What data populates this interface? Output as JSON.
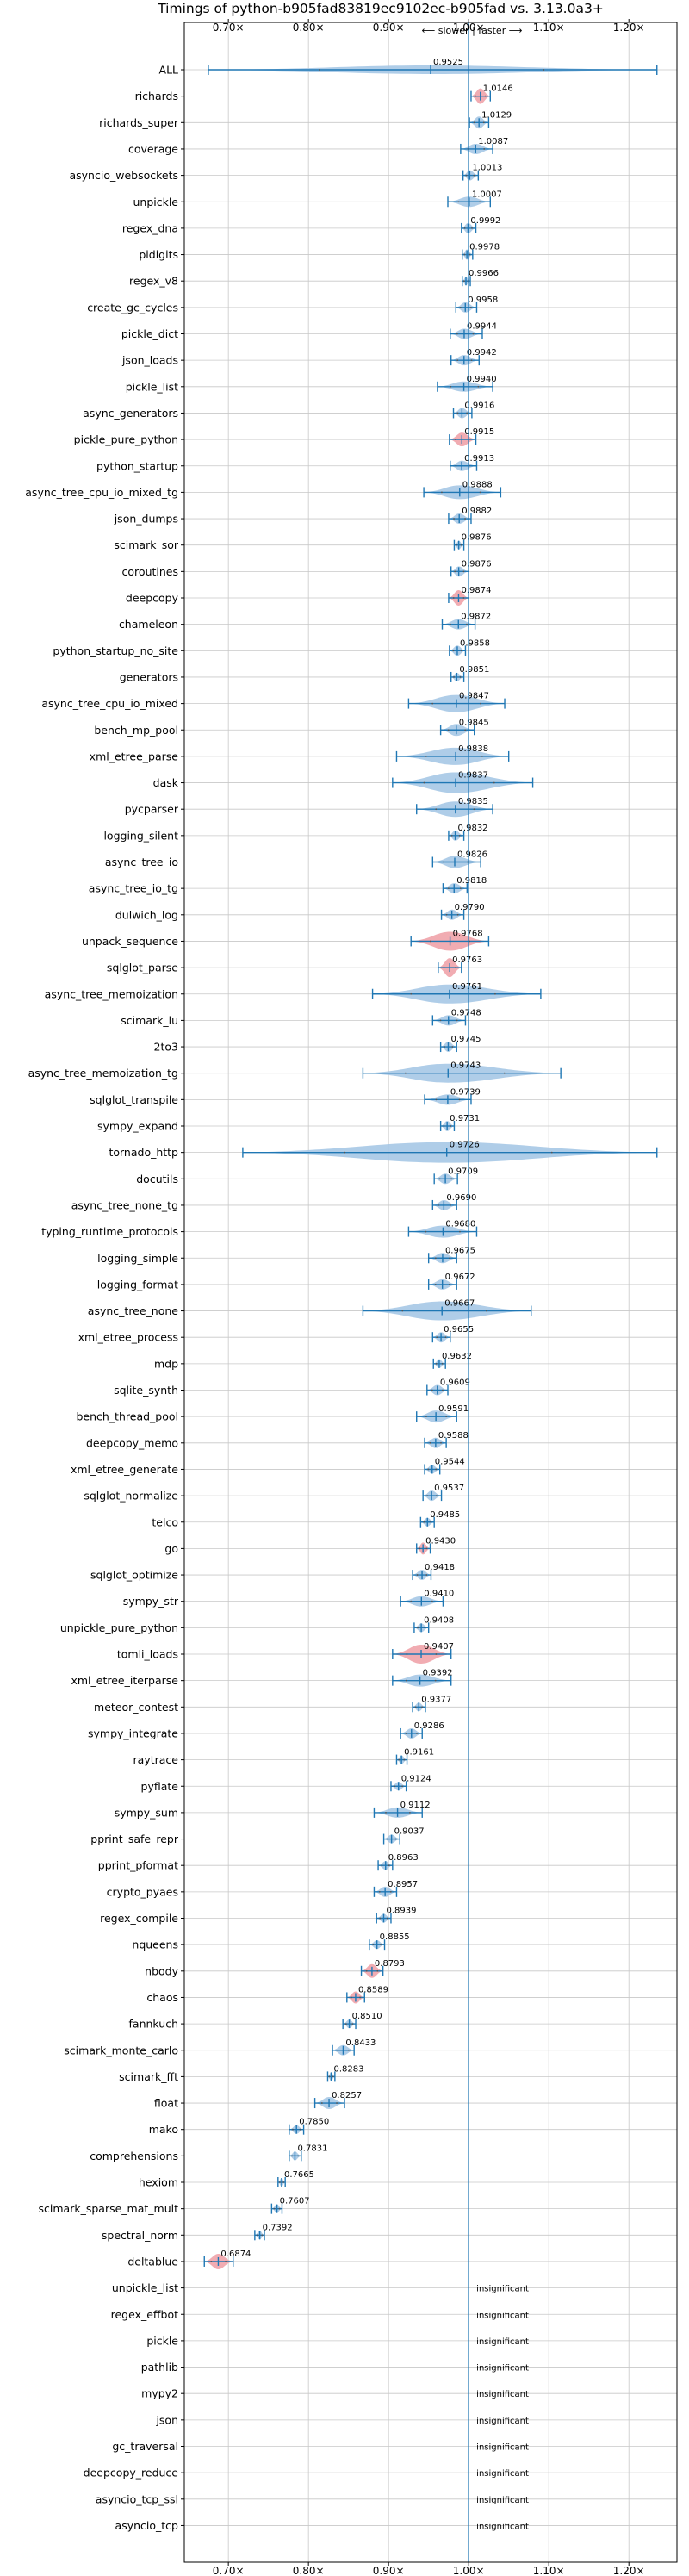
{
  "chart_data": {
    "type": "violin",
    "title": "Timings of python-b905fad83819ec9102ec-b905fad vs. 3.13.0a3+",
    "subtitle": "⟵ slower | faster ⟶",
    "xlim": [
      0.645,
      1.26
    ],
    "reference_line": 1.0,
    "x_ticks": [
      0.7,
      0.8,
      0.9,
      1.0,
      1.1,
      1.2
    ],
    "x_tick_labels": [
      "0.70×",
      "0.80×",
      "0.90×",
      "1.00×",
      "1.10×",
      "1.20×"
    ],
    "grid": true,
    "colors": {
      "normal": "#1f77b4",
      "normal_fill": "#a6c8e6",
      "significant_fill": "#f0a3aa",
      "grid": "#c8c8c8"
    },
    "insignificant_label": "insignificant",
    "benchmarks": [
      {
        "name": "ALL",
        "value": 0.9525,
        "label": "0.9525",
        "lo": 0.675,
        "hi": 1.235,
        "w": 5,
        "sig": false
      },
      {
        "name": "richards",
        "value": 1.0146,
        "label": "1.0146",
        "lo": 1.003,
        "hi": 1.027,
        "w": 9,
        "sig": true
      },
      {
        "name": "richards_super",
        "value": 1.0129,
        "label": "1.0129",
        "lo": 1.001,
        "hi": 1.025,
        "w": 7,
        "sig": false
      },
      {
        "name": "coverage",
        "value": 1.0087,
        "label": "1.0087",
        "lo": 0.99,
        "hi": 1.03,
        "w": 6,
        "sig": false
      },
      {
        "name": "asyncio_websockets",
        "value": 1.0013,
        "label": "1.0013",
        "lo": 0.993,
        "hi": 1.012,
        "w": 6,
        "sig": false
      },
      {
        "name": "unpickle",
        "value": 1.0007,
        "label": "1.0007",
        "lo": 0.974,
        "hi": 1.027,
        "w": 6,
        "sig": false
      },
      {
        "name": "regex_dna",
        "value": 0.9992,
        "label": "0.9992",
        "lo": 0.991,
        "hi": 1.009,
        "w": 6,
        "sig": false
      },
      {
        "name": "pidigits",
        "value": 0.9978,
        "label": "0.9978",
        "lo": 0.992,
        "hi": 1.005,
        "w": 6,
        "sig": false
      },
      {
        "name": "regex_v8",
        "value": 0.9966,
        "label": "0.9966",
        "lo": 0.992,
        "hi": 1.002,
        "w": 5,
        "sig": false
      },
      {
        "name": "create_gc_cycles",
        "value": 0.9958,
        "label": "0.9958",
        "lo": 0.984,
        "hi": 1.01,
        "w": 6,
        "sig": false
      },
      {
        "name": "pickle_dict",
        "value": 0.9944,
        "label": "0.9944",
        "lo": 0.977,
        "hi": 1.017,
        "w": 6,
        "sig": false
      },
      {
        "name": "json_loads",
        "value": 0.9942,
        "label": "0.9942",
        "lo": 0.978,
        "hi": 1.013,
        "w": 6,
        "sig": false
      },
      {
        "name": "pickle_list",
        "value": 0.994,
        "label": "0.9940",
        "lo": 0.961,
        "hi": 1.03,
        "w": 6,
        "sig": false
      },
      {
        "name": "async_generators",
        "value": 0.9916,
        "label": "0.9916",
        "lo": 0.981,
        "hi": 1.004,
        "w": 6,
        "sig": false
      },
      {
        "name": "pickle_pure_python",
        "value": 0.9915,
        "label": "0.9915",
        "lo": 0.976,
        "hi": 1.009,
        "w": 8,
        "sig": true
      },
      {
        "name": "python_startup",
        "value": 0.9913,
        "label": "0.9913",
        "lo": 0.977,
        "hi": 1.01,
        "w": 6,
        "sig": false
      },
      {
        "name": "async_tree_cpu_io_mixed_tg",
        "value": 0.9888,
        "label": "0.9888",
        "lo": 0.944,
        "hi": 1.04,
        "w": 8,
        "sig": false
      },
      {
        "name": "json_dumps",
        "value": 0.9882,
        "label": "0.9882",
        "lo": 0.975,
        "hi": 1.003,
        "w": 6,
        "sig": false
      },
      {
        "name": "scimark_sor",
        "value": 0.9876,
        "label": "0.9876",
        "lo": 0.982,
        "hi": 0.994,
        "w": 5,
        "sig": false
      },
      {
        "name": "coroutines",
        "value": 0.9876,
        "label": "0.9876",
        "lo": 0.978,
        "hi": 1.0,
        "w": 6,
        "sig": false
      },
      {
        "name": "deepcopy",
        "value": 0.9874,
        "label": "0.9874",
        "lo": 0.975,
        "hi": 1.0,
        "w": 9,
        "sig": true
      },
      {
        "name": "chameleon",
        "value": 0.9872,
        "label": "0.9872",
        "lo": 0.967,
        "hi": 1.008,
        "w": 6,
        "sig": false
      },
      {
        "name": "python_startup_no_site",
        "value": 0.9858,
        "label": "0.9858",
        "lo": 0.976,
        "hi": 0.996,
        "w": 6,
        "sig": false
      },
      {
        "name": "generators",
        "value": 0.9851,
        "label": "0.9851",
        "lo": 0.978,
        "hi": 0.994,
        "w": 5,
        "sig": false
      },
      {
        "name": "async_tree_cpu_io_mixed",
        "value": 0.9847,
        "label": "0.9847",
        "lo": 0.925,
        "hi": 1.045,
        "w": 10,
        "sig": false
      },
      {
        "name": "bench_mp_pool",
        "value": 0.9845,
        "label": "0.9845",
        "lo": 0.965,
        "hi": 1.007,
        "w": 7,
        "sig": false
      },
      {
        "name": "xml_etree_parse",
        "value": 0.9838,
        "label": "0.9838",
        "lo": 0.91,
        "hi": 1.05,
        "w": 10,
        "sig": false
      },
      {
        "name": "dask",
        "value": 0.9837,
        "label": "0.9837",
        "lo": 0.905,
        "hi": 1.08,
        "w": 12,
        "sig": false
      },
      {
        "name": "pycparser",
        "value": 0.9835,
        "label": "0.9835",
        "lo": 0.935,
        "hi": 1.03,
        "w": 9,
        "sig": false
      },
      {
        "name": "logging_silent",
        "value": 0.9832,
        "label": "0.9832",
        "lo": 0.975,
        "hi": 0.994,
        "w": 6,
        "sig": false
      },
      {
        "name": "async_tree_io",
        "value": 0.9826,
        "label": "0.9826",
        "lo": 0.955,
        "hi": 1.015,
        "w": 7,
        "sig": false
      },
      {
        "name": "async_tree_io_tg",
        "value": 0.9818,
        "label": "0.9818",
        "lo": 0.968,
        "hi": 0.998,
        "w": 6,
        "sig": false
      },
      {
        "name": "dulwich_log",
        "value": 0.979,
        "label": "0.9790",
        "lo": 0.966,
        "hi": 0.994,
        "w": 6,
        "sig": false
      },
      {
        "name": "unpack_sequence",
        "value": 0.9768,
        "label": "0.9768",
        "lo": 0.928,
        "hi": 1.025,
        "w": 11,
        "sig": true
      },
      {
        "name": "sqlglot_parse",
        "value": 0.9763,
        "label": "0.9763",
        "lo": 0.962,
        "hi": 0.991,
        "w": 11,
        "sig": true
      },
      {
        "name": "async_tree_memoization",
        "value": 0.9761,
        "label": "0.9761",
        "lo": 0.88,
        "hi": 1.09,
        "w": 11,
        "sig": false
      },
      {
        "name": "scimark_lu",
        "value": 0.9748,
        "label": "0.9748",
        "lo": 0.955,
        "hi": 0.996,
        "w": 6,
        "sig": false
      },
      {
        "name": "2to3",
        "value": 0.9745,
        "label": "0.9745",
        "lo": 0.965,
        "hi": 0.985,
        "w": 6,
        "sig": false
      },
      {
        "name": "async_tree_memoization_tg",
        "value": 0.9743,
        "label": "0.9743",
        "lo": 0.868,
        "hi": 1.115,
        "w": 11,
        "sig": false
      },
      {
        "name": "sqlglot_transpile",
        "value": 0.9739,
        "label": "0.9739",
        "lo": 0.945,
        "hi": 1.003,
        "w": 6,
        "sig": false
      },
      {
        "name": "sympy_expand",
        "value": 0.9731,
        "label": "0.9731",
        "lo": 0.965,
        "hi": 0.982,
        "w": 6,
        "sig": false
      },
      {
        "name": "tornado_http",
        "value": 0.9726,
        "label": "0.9726",
        "lo": 0.718,
        "hi": 1.235,
        "w": 12,
        "sig": false
      },
      {
        "name": "docutils",
        "value": 0.9709,
        "label": "0.9709",
        "lo": 0.957,
        "hi": 0.986,
        "w": 6,
        "sig": false
      },
      {
        "name": "async_tree_none_tg",
        "value": 0.969,
        "label": "0.9690",
        "lo": 0.955,
        "hi": 0.985,
        "w": 6,
        "sig": false
      },
      {
        "name": "typing_runtime_protocols",
        "value": 0.968,
        "label": "0.9680",
        "lo": 0.925,
        "hi": 1.01,
        "w": 7,
        "sig": false
      },
      {
        "name": "logging_simple",
        "value": 0.9675,
        "label": "0.9675",
        "lo": 0.95,
        "hi": 0.985,
        "w": 6,
        "sig": false
      },
      {
        "name": "logging_format",
        "value": 0.9672,
        "label": "0.9672",
        "lo": 0.95,
        "hi": 0.985,
        "w": 6,
        "sig": false
      },
      {
        "name": "async_tree_none",
        "value": 0.9667,
        "label": "0.9667",
        "lo": 0.868,
        "hi": 1.078,
        "w": 11,
        "sig": false
      },
      {
        "name": "xml_etree_process",
        "value": 0.9655,
        "label": "0.9655",
        "lo": 0.955,
        "hi": 0.977,
        "w": 6,
        "sig": false
      },
      {
        "name": "mdp",
        "value": 0.9632,
        "label": "0.9632",
        "lo": 0.956,
        "hi": 0.971,
        "w": 5,
        "sig": false
      },
      {
        "name": "sqlite_synth",
        "value": 0.9609,
        "label": "0.9609",
        "lo": 0.948,
        "hi": 0.974,
        "w": 6,
        "sig": false
      },
      {
        "name": "bench_thread_pool",
        "value": 0.9591,
        "label": "0.9591",
        "lo": 0.935,
        "hi": 0.985,
        "w": 7,
        "sig": false
      },
      {
        "name": "deepcopy_memo",
        "value": 0.9588,
        "label": "0.9588",
        "lo": 0.945,
        "hi": 0.972,
        "w": 6,
        "sig": false
      },
      {
        "name": "xml_etree_generate",
        "value": 0.9544,
        "label": "0.9544",
        "lo": 0.945,
        "hi": 0.964,
        "w": 5,
        "sig": false
      },
      {
        "name": "sqlglot_normalize",
        "value": 0.9537,
        "label": "0.9537",
        "lo": 0.943,
        "hi": 0.966,
        "w": 6,
        "sig": false
      },
      {
        "name": "telco",
        "value": 0.9485,
        "label": "0.9485",
        "lo": 0.94,
        "hi": 0.957,
        "w": 5,
        "sig": false
      },
      {
        "name": "go",
        "value": 0.943,
        "label": "0.9430",
        "lo": 0.935,
        "hi": 0.952,
        "w": 7,
        "sig": true
      },
      {
        "name": "sqlglot_optimize",
        "value": 0.9418,
        "label": "0.9418",
        "lo": 0.93,
        "hi": 0.953,
        "w": 6,
        "sig": false
      },
      {
        "name": "sympy_str",
        "value": 0.941,
        "label": "0.9410",
        "lo": 0.915,
        "hi": 0.968,
        "w": 6,
        "sig": false
      },
      {
        "name": "unpickle_pure_python",
        "value": 0.9408,
        "label": "0.9408",
        "lo": 0.932,
        "hi": 0.95,
        "w": 5,
        "sig": false
      },
      {
        "name": "tomli_loads",
        "value": 0.9407,
        "label": "0.9407",
        "lo": 0.905,
        "hi": 0.978,
        "w": 11,
        "sig": true
      },
      {
        "name": "xml_etree_iterparse",
        "value": 0.9392,
        "label": "0.9392",
        "lo": 0.905,
        "hi": 0.978,
        "w": 7,
        "sig": false
      },
      {
        "name": "meteor_contest",
        "value": 0.9377,
        "label": "0.9377",
        "lo": 0.93,
        "hi": 0.946,
        "w": 5,
        "sig": false
      },
      {
        "name": "sympy_integrate",
        "value": 0.9286,
        "label": "0.9286",
        "lo": 0.915,
        "hi": 0.942,
        "w": 6,
        "sig": false
      },
      {
        "name": "raytrace",
        "value": 0.9161,
        "label": "0.9161",
        "lo": 0.91,
        "hi": 0.923,
        "w": 5,
        "sig": false
      },
      {
        "name": "pyflate",
        "value": 0.9124,
        "label": "0.9124",
        "lo": 0.903,
        "hi": 0.922,
        "w": 5,
        "sig": false
      },
      {
        "name": "sympy_sum",
        "value": 0.9112,
        "label": "0.9112",
        "lo": 0.882,
        "hi": 0.942,
        "w": 6,
        "sig": false
      },
      {
        "name": "pprint_safe_repr",
        "value": 0.9037,
        "label": "0.9037",
        "lo": 0.894,
        "hi": 0.914,
        "w": 5,
        "sig": false
      },
      {
        "name": "pprint_pformat",
        "value": 0.8963,
        "label": "0.8963",
        "lo": 0.887,
        "hi": 0.905,
        "w": 5,
        "sig": false
      },
      {
        "name": "crypto_pyaes",
        "value": 0.8957,
        "label": "0.8957",
        "lo": 0.882,
        "hi": 0.91,
        "w": 6,
        "sig": false
      },
      {
        "name": "regex_compile",
        "value": 0.8939,
        "label": "0.8939",
        "lo": 0.885,
        "hi": 0.903,
        "w": 5,
        "sig": false
      },
      {
        "name": "nqueens",
        "value": 0.8855,
        "label": "0.8855",
        "lo": 0.876,
        "hi": 0.895,
        "w": 5,
        "sig": false
      },
      {
        "name": "nbody",
        "value": 0.8793,
        "label": "0.8793",
        "lo": 0.866,
        "hi": 0.893,
        "w": 8,
        "sig": true
      },
      {
        "name": "chaos",
        "value": 0.8589,
        "label": "0.8589",
        "lo": 0.848,
        "hi": 0.87,
        "w": 7,
        "sig": true
      },
      {
        "name": "fannkuch",
        "value": 0.851,
        "label": "0.8510",
        "lo": 0.843,
        "hi": 0.859,
        "w": 5,
        "sig": false
      },
      {
        "name": "scimark_monte_carlo",
        "value": 0.8433,
        "label": "0.8433",
        "lo": 0.83,
        "hi": 0.857,
        "w": 6,
        "sig": false
      },
      {
        "name": "scimark_fft",
        "value": 0.8283,
        "label": "0.8283",
        "lo": 0.824,
        "hi": 0.833,
        "w": 5,
        "sig": false
      },
      {
        "name": "float",
        "value": 0.8257,
        "label": "0.8257",
        "lo": 0.808,
        "hi": 0.845,
        "w": 7,
        "sig": false
      },
      {
        "name": "mako",
        "value": 0.785,
        "label": "0.7850",
        "lo": 0.776,
        "hi": 0.794,
        "w": 5,
        "sig": false
      },
      {
        "name": "comprehensions",
        "value": 0.7831,
        "label": "0.7831",
        "lo": 0.776,
        "hi": 0.791,
        "w": 5,
        "sig": false
      },
      {
        "name": "hexiom",
        "value": 0.7665,
        "label": "0.7665",
        "lo": 0.762,
        "hi": 0.771,
        "w": 5,
        "sig": false
      },
      {
        "name": "scimark_sparse_mat_mult",
        "value": 0.7607,
        "label": "0.7607",
        "lo": 0.754,
        "hi": 0.767,
        "w": 5,
        "sig": false
      },
      {
        "name": "spectral_norm",
        "value": 0.7392,
        "label": "0.7392",
        "lo": 0.733,
        "hi": 0.745,
        "w": 5,
        "sig": false
      },
      {
        "name": "deltablue",
        "value": 0.6874,
        "label": "0.6874",
        "lo": 0.67,
        "hi": 0.706,
        "w": 9,
        "sig": true
      },
      {
        "name": "unpickle_list",
        "insignificant": true
      },
      {
        "name": "regex_effbot",
        "insignificant": true
      },
      {
        "name": "pickle",
        "insignificant": true
      },
      {
        "name": "pathlib",
        "insignificant": true
      },
      {
        "name": "mypy2",
        "insignificant": true
      },
      {
        "name": "json",
        "insignificant": true
      },
      {
        "name": "gc_traversal",
        "insignificant": true
      },
      {
        "name": "deepcopy_reduce",
        "insignificant": true
      },
      {
        "name": "asyncio_tcp_ssl",
        "insignificant": true
      },
      {
        "name": "asyncio_tcp",
        "insignificant": true
      }
    ]
  }
}
